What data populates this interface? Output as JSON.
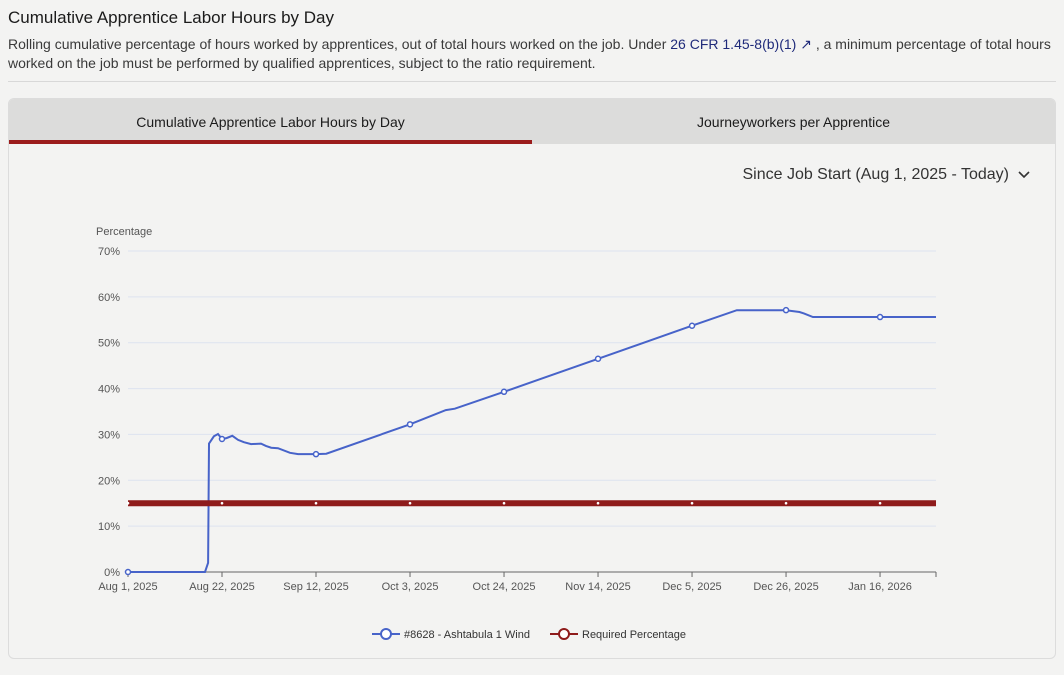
{
  "header": {
    "title": "Cumulative Apprentice Labor Hours by Day",
    "desc_before": "Rolling cumulative percentage of hours worked by apprentices, out of total hours worked on the job. Under ",
    "link": "26 CFR 1.45-8(b)(1)",
    "desc_after": ", a minimum percentage of total hours worked on the job must be performed by qualified apprentices, subject to the ratio requirement."
  },
  "tabs": [
    {
      "label": "Cumulative Apprentice Labor Hours by Day",
      "active": true
    },
    {
      "label": "Journeyworkers per Apprentice",
      "active": false
    }
  ],
  "range": {
    "label": "Since Job Start (Aug 1, 2025 - Today)"
  },
  "colors": {
    "series": "#4763c9",
    "required": "#8e1b1b"
  },
  "chart_data": {
    "type": "line",
    "ylabel": "Percentage",
    "xlabel": "",
    "xunit": "days since Aug 1, 2025",
    "xlim": [
      0,
      180.5
    ],
    "ylim": [
      0,
      70
    ],
    "yticks": [
      "0%",
      "10%",
      "20%",
      "30%",
      "40%",
      "50%",
      "60%",
      "70%"
    ],
    "xticks": [
      {
        "x": 0,
        "label": "Aug 1, 2025"
      },
      {
        "x": 21,
        "label": "Aug 22, 2025"
      },
      {
        "x": 42,
        "label": "Sep 12, 2025"
      },
      {
        "x": 63,
        "label": "Oct 3, 2025"
      },
      {
        "x": 84,
        "label": "Oct 24, 2025"
      },
      {
        "x": 105,
        "label": "Nov 14, 2025"
      },
      {
        "x": 126,
        "label": "Dec 5, 2025"
      },
      {
        "x": 147,
        "label": "Dec 26, 2025"
      },
      {
        "x": 168,
        "label": "Jan 16, 2026"
      }
    ],
    "grid": true,
    "legend_position": "bottom",
    "series": [
      {
        "name": "#8628 - Ashtabula 1 Wind",
        "points": [
          [
            0,
            0
          ],
          [
            17.2,
            0
          ],
          [
            17.9,
            2
          ],
          [
            18.1,
            28
          ],
          [
            19.2,
            29.6
          ],
          [
            20.1,
            30.1
          ],
          [
            21,
            29
          ],
          [
            22,
            29.2
          ],
          [
            23.3,
            29.7
          ],
          [
            24.6,
            28.8
          ],
          [
            25.9,
            28.3
          ],
          [
            27.5,
            27.9
          ],
          [
            29.7,
            28
          ],
          [
            30.8,
            27.5
          ],
          [
            32,
            27.1
          ],
          [
            33.5,
            27
          ],
          [
            36.2,
            26
          ],
          [
            38,
            25.7
          ],
          [
            42,
            25.7
          ],
          [
            44.3,
            25.8
          ],
          [
            63,
            32.2
          ],
          [
            71,
            35.3
          ],
          [
            73,
            35.6
          ],
          [
            84,
            39.3
          ],
          [
            105,
            46.5
          ],
          [
            126,
            53.7
          ],
          [
            136,
            57.1
          ],
          [
            147,
            57.1
          ],
          [
            150,
            56.7
          ],
          [
            151,
            56.4
          ],
          [
            153,
            55.6
          ],
          [
            168,
            55.6
          ],
          [
            180.5,
            55.6
          ]
        ],
        "markers": [
          0,
          21,
          42,
          63,
          84,
          105,
          126,
          147,
          168
        ]
      },
      {
        "name": "Required Percentage",
        "points": [
          [
            0,
            15
          ],
          [
            180.5,
            15
          ]
        ],
        "markers": [
          0,
          21,
          42,
          63,
          84,
          105,
          126,
          147,
          168
        ]
      }
    ]
  }
}
